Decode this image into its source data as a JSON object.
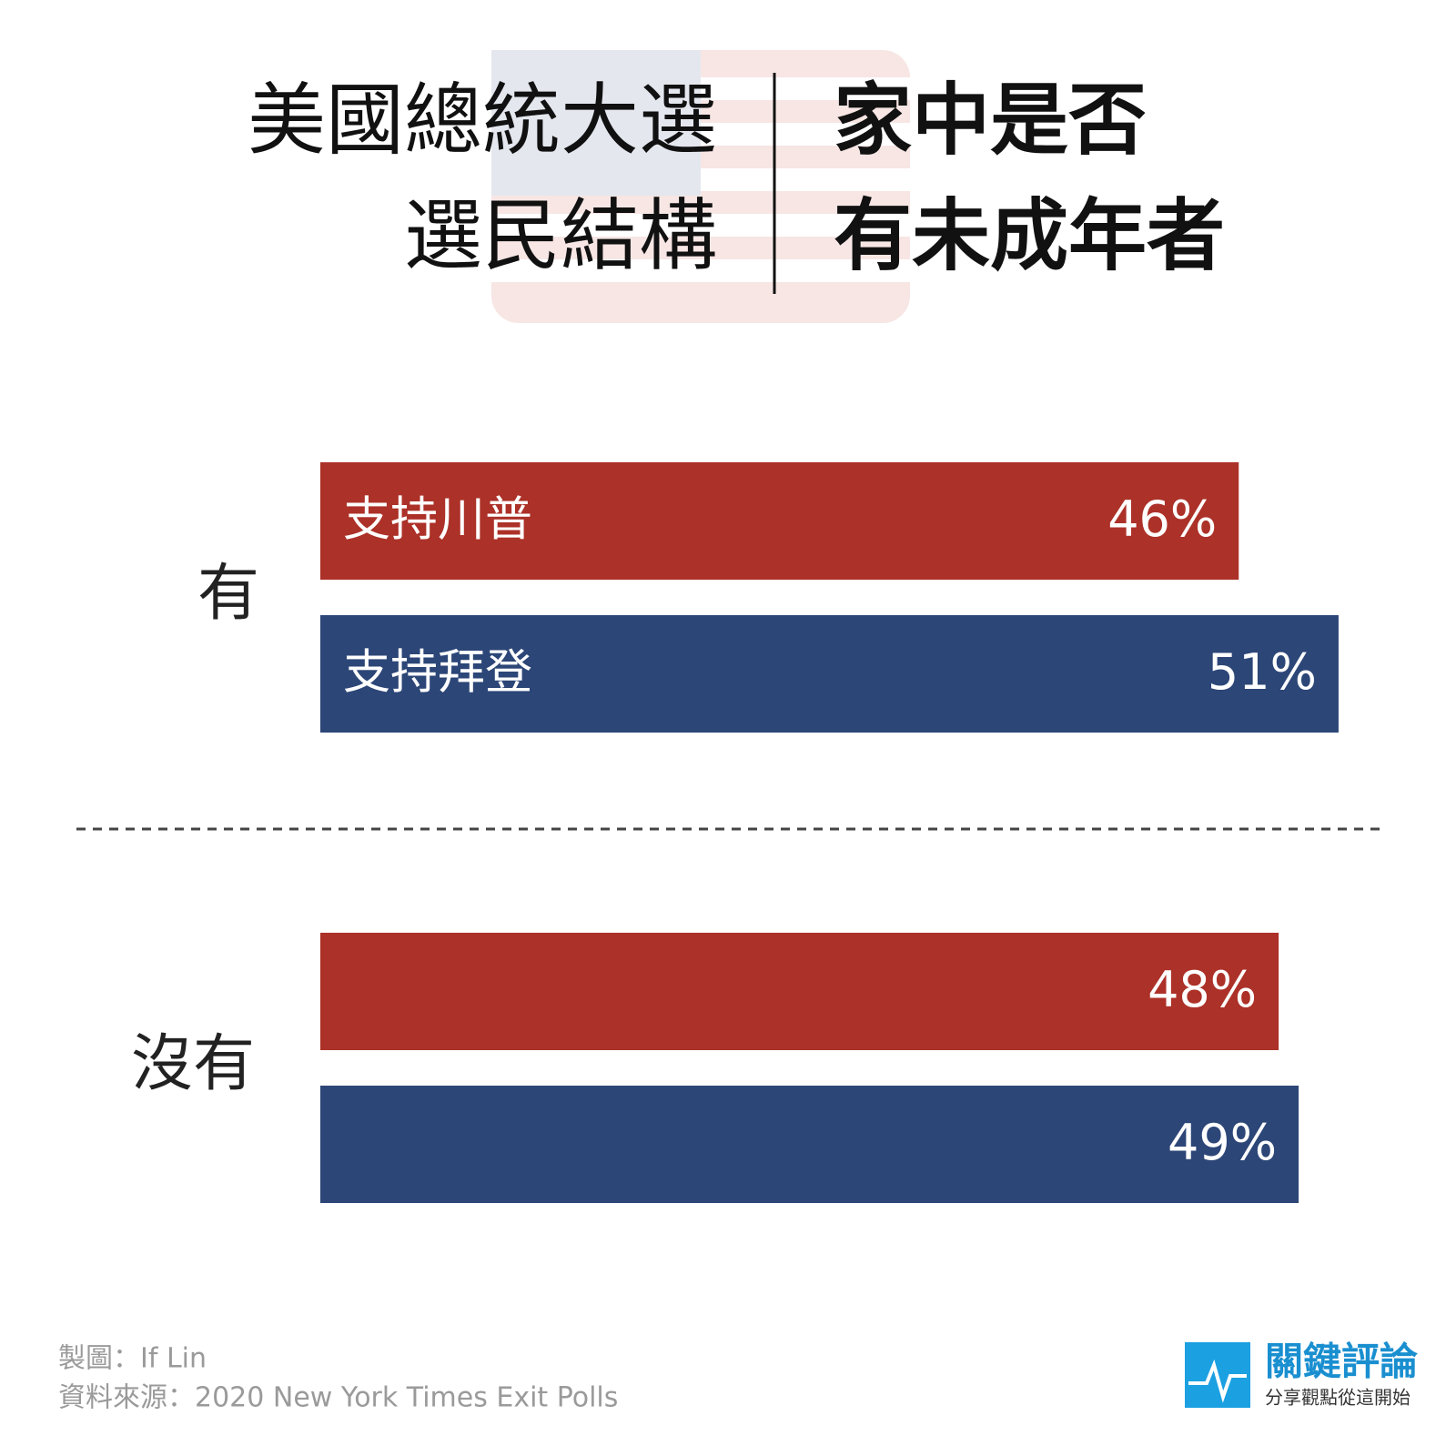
{
  "chart_data": {
    "type": "bar",
    "title": [
      "美國總統大選",
      "選民結構"
    ],
    "subtitle": [
      "家中是否",
      "有未成年者"
    ],
    "categories": [
      "有",
      "沒有"
    ],
    "series": [
      {
        "name": "支持川普",
        "color": "#ac3128",
        "values": [
          46,
          48
        ],
        "value_labels": [
          "46%",
          "48%"
        ]
      },
      {
        "name": "支持拜登",
        "color": "#2c4677",
        "values": [
          51,
          49
        ],
        "value_labels": [
          "51%",
          "49%"
        ]
      }
    ]
  },
  "footer": {
    "credit": "製圖：If Lin",
    "source": "資料來源：2020 New York Times Exit Polls",
    "logo": {
      "name": "關鍵評論",
      "slogan": "分享觀點從這開始"
    }
  }
}
